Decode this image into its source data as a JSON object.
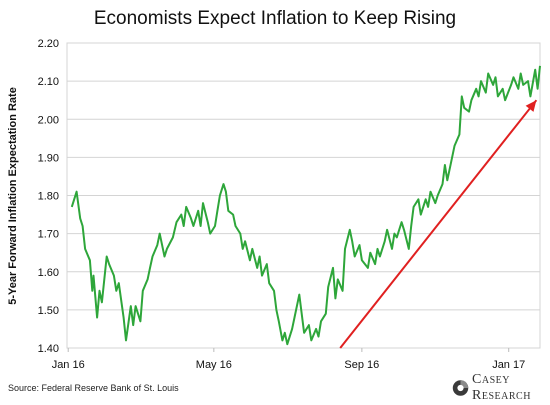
{
  "chart_data": {
    "type": "line",
    "title": "Economists Expect Inflation to Keep Rising",
    "ylabel": "5-Year Forward Inflation Expectation Rate",
    "xlabel": "",
    "ylim": [
      1.4,
      2.2
    ],
    "yticks": [
      "1.40",
      "1.50",
      "1.60",
      "1.70",
      "1.80",
      "1.90",
      "2.00",
      "2.10",
      "2.20"
    ],
    "xticks": [
      "Jan 16",
      "May 16",
      "Sep 16",
      "Jan 17"
    ],
    "xtick_dates": [
      "2016-01-01",
      "2016-05-01",
      "2016-09-01",
      "2017-01-01"
    ],
    "xrange": [
      "2015-12-31",
      "2017-01-27"
    ],
    "grid": "horizontal",
    "line_color": "#2ea63a",
    "series": [
      {
        "values": [
          [
            "2016-01-04",
            1.77
          ],
          [
            "2016-01-06",
            1.79
          ],
          [
            "2016-01-08",
            1.81
          ],
          [
            "2016-01-11",
            1.74
          ],
          [
            "2016-01-13",
            1.72
          ],
          [
            "2016-01-15",
            1.66
          ],
          [
            "2016-01-19",
            1.63
          ],
          [
            "2016-01-21",
            1.55
          ],
          [
            "2016-01-22",
            1.59
          ],
          [
            "2016-01-25",
            1.48
          ],
          [
            "2016-01-27",
            1.55
          ],
          [
            "2016-01-29",
            1.52
          ],
          [
            "2016-02-02",
            1.64
          ],
          [
            "2016-02-04",
            1.62
          ],
          [
            "2016-02-08",
            1.59
          ],
          [
            "2016-02-10",
            1.55
          ],
          [
            "2016-02-12",
            1.57
          ],
          [
            "2016-02-16",
            1.48
          ],
          [
            "2016-02-18",
            1.42
          ],
          [
            "2016-02-22",
            1.51
          ],
          [
            "2016-02-24",
            1.46
          ],
          [
            "2016-02-26",
            1.51
          ],
          [
            "2016-03-01",
            1.47
          ],
          [
            "2016-03-03",
            1.55
          ],
          [
            "2016-03-07",
            1.58
          ],
          [
            "2016-03-09",
            1.61
          ],
          [
            "2016-03-11",
            1.64
          ],
          [
            "2016-03-15",
            1.67
          ],
          [
            "2016-03-17",
            1.7
          ],
          [
            "2016-03-21",
            1.64
          ],
          [
            "2016-03-23",
            1.66
          ],
          [
            "2016-03-28",
            1.69
          ],
          [
            "2016-03-31",
            1.73
          ],
          [
            "2016-04-04",
            1.75
          ],
          [
            "2016-04-06",
            1.72
          ],
          [
            "2016-04-08",
            1.77
          ],
          [
            "2016-04-12",
            1.74
          ],
          [
            "2016-04-14",
            1.72
          ],
          [
            "2016-04-18",
            1.76
          ],
          [
            "2016-04-20",
            1.72
          ],
          [
            "2016-04-22",
            1.78
          ],
          [
            "2016-04-26",
            1.73
          ],
          [
            "2016-04-28",
            1.7
          ],
          [
            "2016-05-02",
            1.72
          ],
          [
            "2016-05-04",
            1.76
          ],
          [
            "2016-05-06",
            1.8
          ],
          [
            "2016-05-09",
            1.83
          ],
          [
            "2016-05-11",
            1.81
          ],
          [
            "2016-05-13",
            1.76
          ],
          [
            "2016-05-17",
            1.75
          ],
          [
            "2016-05-19",
            1.72
          ],
          [
            "2016-05-23",
            1.7
          ],
          [
            "2016-05-25",
            1.66
          ],
          [
            "2016-05-27",
            1.68
          ],
          [
            "2016-05-31",
            1.63
          ],
          [
            "2016-06-02",
            1.66
          ],
          [
            "2016-06-06",
            1.61
          ],
          [
            "2016-06-08",
            1.64
          ],
          [
            "2016-06-10",
            1.59
          ],
          [
            "2016-06-14",
            1.62
          ],
          [
            "2016-06-16",
            1.57
          ],
          [
            "2016-06-20",
            1.55
          ],
          [
            "2016-06-22",
            1.5
          ],
          [
            "2016-06-24",
            1.47
          ],
          [
            "2016-06-27",
            1.42
          ],
          [
            "2016-06-29",
            1.44
          ],
          [
            "2016-07-01",
            1.41
          ],
          [
            "2016-07-05",
            1.45
          ],
          [
            "2016-07-07",
            1.48
          ],
          [
            "2016-07-11",
            1.54
          ],
          [
            "2016-07-13",
            1.49
          ],
          [
            "2016-07-15",
            1.44
          ],
          [
            "2016-07-19",
            1.46
          ],
          [
            "2016-07-21",
            1.42
          ],
          [
            "2016-07-25",
            1.45
          ],
          [
            "2016-07-27",
            1.43
          ],
          [
            "2016-07-29",
            1.47
          ],
          [
            "2016-08-02",
            1.49
          ],
          [
            "2016-08-04",
            1.56
          ],
          [
            "2016-08-08",
            1.61
          ],
          [
            "2016-08-10",
            1.53
          ],
          [
            "2016-08-12",
            1.58
          ],
          [
            "2016-08-16",
            1.55
          ],
          [
            "2016-08-18",
            1.66
          ],
          [
            "2016-08-22",
            1.71
          ],
          [
            "2016-08-24",
            1.68
          ],
          [
            "2016-08-26",
            1.64
          ],
          [
            "2016-08-30",
            1.67
          ],
          [
            "2016-09-01",
            1.63
          ],
          [
            "2016-09-06",
            1.61
          ],
          [
            "2016-09-08",
            1.65
          ],
          [
            "2016-09-12",
            1.62
          ],
          [
            "2016-09-14",
            1.66
          ],
          [
            "2016-09-16",
            1.64
          ],
          [
            "2016-09-20",
            1.68
          ],
          [
            "2016-09-22",
            1.71
          ],
          [
            "2016-09-26",
            1.66
          ],
          [
            "2016-09-28",
            1.7
          ],
          [
            "2016-09-30",
            1.69
          ],
          [
            "2016-10-04",
            1.73
          ],
          [
            "2016-10-06",
            1.71
          ],
          [
            "2016-10-10",
            1.66
          ],
          [
            "2016-10-12",
            1.72
          ],
          [
            "2016-10-14",
            1.77
          ],
          [
            "2016-10-18",
            1.79
          ],
          [
            "2016-10-20",
            1.75
          ],
          [
            "2016-10-24",
            1.79
          ],
          [
            "2016-10-26",
            1.77
          ],
          [
            "2016-10-28",
            1.81
          ],
          [
            "2016-11-01",
            1.78
          ],
          [
            "2016-11-03",
            1.8
          ],
          [
            "2016-11-07",
            1.83
          ],
          [
            "2016-11-09",
            1.88
          ],
          [
            "2016-11-11",
            1.84
          ],
          [
            "2016-11-15",
            1.9
          ],
          [
            "2016-11-17",
            1.93
          ],
          [
            "2016-11-21",
            1.96
          ],
          [
            "2016-11-23",
            2.06
          ],
          [
            "2016-11-25",
            2.03
          ],
          [
            "2016-11-29",
            2.02
          ],
          [
            "2016-12-01",
            2.05
          ],
          [
            "2016-12-05",
            2.08
          ],
          [
            "2016-12-07",
            2.06
          ],
          [
            "2016-12-09",
            2.1
          ],
          [
            "2016-12-13",
            2.07
          ],
          [
            "2016-12-15",
            2.12
          ],
          [
            "2016-12-19",
            2.09
          ],
          [
            "2016-12-21",
            2.11
          ],
          [
            "2016-12-23",
            2.06
          ],
          [
            "2016-12-27",
            2.08
          ],
          [
            "2016-12-29",
            2.05
          ],
          [
            "2017-01-03",
            2.09
          ],
          [
            "2017-01-05",
            2.11
          ],
          [
            "2017-01-09",
            2.08
          ],
          [
            "2017-01-11",
            2.12
          ],
          [
            "2017-01-13",
            2.09
          ],
          [
            "2017-01-17",
            2.1
          ],
          [
            "2017-01-19",
            2.06
          ],
          [
            "2017-01-23",
            2.13
          ],
          [
            "2017-01-25",
            2.08
          ],
          [
            "2017-01-27",
            2.14
          ]
        ]
      }
    ],
    "annotations": [
      {
        "type": "arrow",
        "color": "#e02020",
        "from": [
          "2016-08-14",
          1.4
        ],
        "to": [
          "2017-01-24",
          2.05
        ]
      }
    ]
  },
  "source": "Source: Federal Reserve Bank of St. Louis",
  "logo_text": "Casey Research"
}
